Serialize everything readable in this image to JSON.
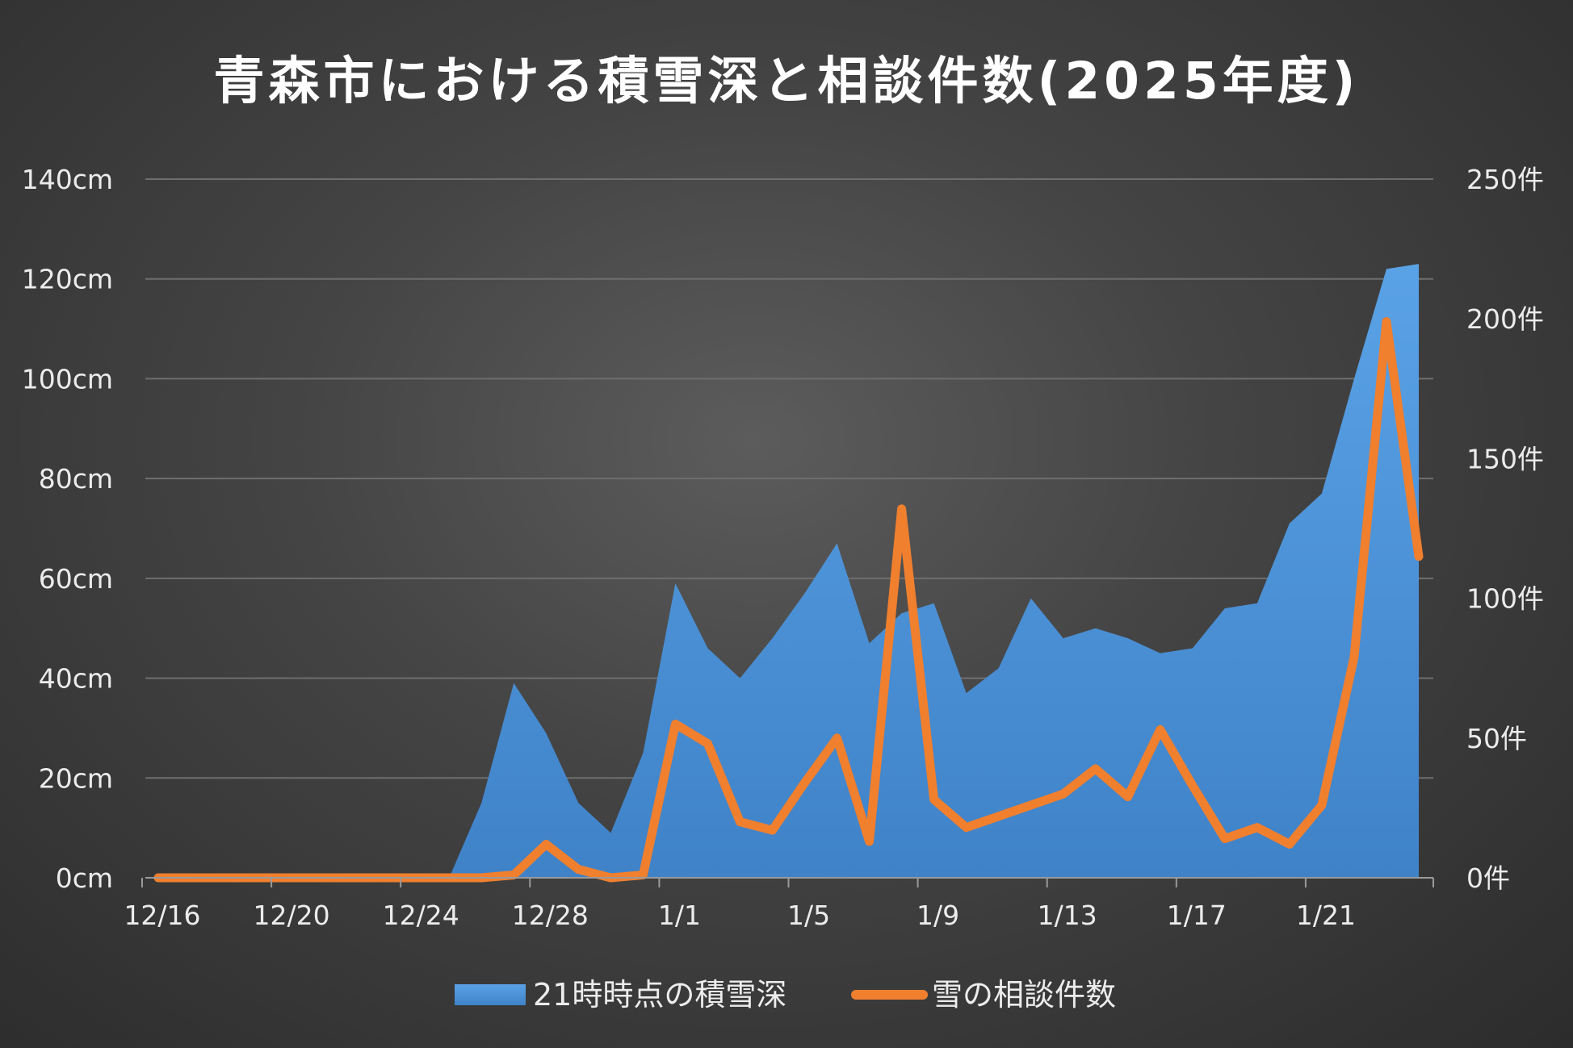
{
  "chart_data": {
    "type": "area+line",
    "title": "青森市における積雪深と相談件数(2025年度)",
    "categories": [
      "12/16",
      "12/17",
      "12/18",
      "12/19",
      "12/20",
      "12/21",
      "12/22",
      "12/23",
      "12/24",
      "12/25",
      "12/26",
      "12/27",
      "12/28",
      "12/29",
      "12/30",
      "12/31",
      "1/1",
      "1/2",
      "1/3",
      "1/4",
      "1/5",
      "1/6",
      "1/7",
      "1/8",
      "1/9",
      "1/10",
      "1/11",
      "1/12",
      "1/13",
      "1/14",
      "1/15",
      "1/16",
      "1/17",
      "1/18",
      "1/19",
      "1/20",
      "1/21",
      "1/22",
      "1/23",
      "1/24"
    ],
    "x_tick_labels": [
      "12/16",
      "12/20",
      "12/24",
      "12/28",
      "1/1",
      "1/5",
      "1/9",
      "1/13",
      "1/17",
      "1/21"
    ],
    "series": [
      {
        "name": "21時時点の積雪深",
        "type": "area",
        "axis": "left",
        "color": "#4f92d8",
        "values": [
          0,
          0,
          0,
          0,
          0,
          0,
          0,
          0,
          0,
          0,
          15,
          39,
          29,
          15,
          9,
          25,
          59,
          46,
          40,
          48,
          57,
          67,
          47,
          53,
          55,
          37,
          42,
          56,
          48,
          50,
          48,
          45,
          46,
          54,
          55,
          71,
          77,
          100,
          122,
          123
        ]
      },
      {
        "name": "雪の相談件数",
        "type": "line",
        "axis": "right",
        "color": "#f07f2e",
        "values": [
          0,
          0,
          0,
          0,
          0,
          0,
          0,
          0,
          0,
          0,
          0,
          1,
          12,
          3,
          0,
          1,
          55,
          48,
          20,
          17,
          34,
          50,
          13,
          132,
          28,
          18,
          22,
          26,
          30,
          39,
          29,
          53,
          33,
          14,
          18,
          12,
          26,
          79,
          199,
          115
        ]
      }
    ],
    "y_left": {
      "ylim": [
        0,
        140
      ],
      "ticks": [
        "0cm",
        "20cm",
        "40cm",
        "60cm",
        "80cm",
        "100cm",
        "120cm",
        "140cm"
      ]
    },
    "y_right": {
      "ylim": [
        0,
        250
      ],
      "ticks": [
        "0件",
        "50件",
        "100件",
        "150件",
        "200件",
        "250件"
      ]
    },
    "grid": true,
    "legend_position": "bottom"
  }
}
